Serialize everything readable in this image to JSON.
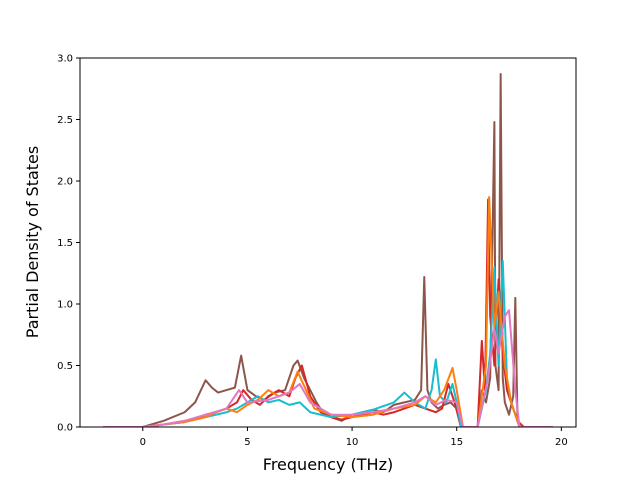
{
  "chart_data": {
    "type": "line",
    "title": "",
    "xlabel": "Frequency (THz)",
    "ylabel": "Partial Density of States",
    "xlim": [
      -3.0,
      20.7
    ],
    "ylim": [
      0.0,
      3.0
    ],
    "xticks": [
      0,
      5,
      10,
      15,
      20
    ],
    "yticks": [
      0.0,
      0.5,
      1.0,
      1.5,
      2.0,
      2.5,
      3.0
    ],
    "xtick_labels": [
      "0",
      "5",
      "10",
      "15",
      "20"
    ],
    "ytick_labels": [
      "0.0",
      "0.5",
      "1.0",
      "1.5",
      "2.0",
      "2.5",
      "3.0"
    ],
    "grid": false,
    "legend": "none",
    "series": [
      {
        "color": "#8c564b",
        "x": [
          -1.9,
          0.0,
          1.0,
          2.0,
          2.5,
          3.0,
          3.3,
          3.6,
          4.0,
          4.4,
          4.7,
          5.0,
          5.4,
          5.8,
          6.3,
          6.8,
          7.2,
          7.4,
          7.7,
          8.0,
          8.3,
          8.6,
          9.0,
          9.5,
          10.0,
          10.5,
          11.0,
          11.5,
          12.0,
          12.5,
          13.0,
          13.3,
          13.45,
          13.6,
          13.8,
          14.1,
          14.4,
          14.7,
          15.0,
          15.2,
          15.5,
          16.0,
          16.2,
          16.4,
          16.6,
          16.8,
          16.85,
          17.0,
          17.1,
          17.2,
          17.3,
          17.5,
          17.7,
          17.8,
          17.9,
          18.0,
          19.0,
          19.6
        ],
        "y": [
          0.0,
          0.0,
          0.05,
          0.12,
          0.2,
          0.38,
          0.32,
          0.28,
          0.3,
          0.32,
          0.58,
          0.3,
          0.25,
          0.22,
          0.28,
          0.3,
          0.5,
          0.54,
          0.4,
          0.3,
          0.2,
          0.12,
          0.08,
          0.05,
          0.1,
          0.12,
          0.14,
          0.12,
          0.18,
          0.2,
          0.22,
          0.3,
          1.22,
          0.3,
          0.2,
          0.15,
          0.18,
          0.2,
          0.15,
          0.0,
          0.0,
          0.0,
          0.3,
          0.2,
          0.4,
          2.48,
          0.5,
          0.3,
          2.87,
          0.4,
          0.2,
          0.1,
          0.25,
          1.05,
          0.1,
          0.0,
          0.0,
          0.0
        ]
      },
      {
        "color": "#d62728",
        "x": [
          -1.9,
          0.0,
          1.0,
          2.0,
          2.6,
          3.0,
          3.5,
          4.0,
          4.5,
          4.8,
          5.2,
          5.6,
          6.0,
          6.5,
          7.0,
          7.3,
          7.6,
          8.0,
          8.5,
          9.0,
          9.5,
          10.0,
          10.5,
          11.0,
          11.5,
          12.0,
          12.5,
          13.0,
          13.5,
          14.0,
          14.3,
          14.6,
          14.9,
          15.2,
          15.5,
          16.0,
          16.2,
          16.35,
          16.5,
          16.6,
          16.8,
          17.0,
          17.2,
          17.4,
          17.6,
          17.9,
          18.2,
          19.6
        ],
        "y": [
          0.0,
          0.0,
          0.02,
          0.05,
          0.07,
          0.1,
          0.12,
          0.15,
          0.2,
          0.3,
          0.22,
          0.18,
          0.25,
          0.3,
          0.25,
          0.4,
          0.5,
          0.25,
          0.12,
          0.08,
          0.06,
          0.08,
          0.1,
          0.12,
          0.1,
          0.12,
          0.15,
          0.18,
          0.15,
          0.12,
          0.15,
          0.35,
          0.2,
          0.0,
          0.0,
          0.0,
          0.7,
          0.3,
          1.85,
          0.9,
          0.5,
          1.2,
          0.6,
          0.3,
          0.2,
          0.05,
          0.0,
          0.0
        ]
      },
      {
        "color": "#17becf",
        "x": [
          -1.9,
          0.0,
          1.0,
          2.0,
          3.0,
          4.0,
          4.5,
          5.0,
          5.5,
          6.0,
          6.5,
          7.0,
          7.5,
          8.0,
          9.0,
          10.0,
          11.0,
          12.0,
          12.5,
          13.0,
          13.5,
          13.8,
          14.0,
          14.2,
          14.5,
          14.8,
          15.0,
          15.2,
          16.0,
          16.4,
          16.6,
          16.8,
          17.0,
          17.2,
          17.4,
          17.6,
          18.0,
          19.6
        ],
        "y": [
          0.0,
          0.0,
          0.02,
          0.04,
          0.08,
          0.12,
          0.15,
          0.2,
          0.25,
          0.2,
          0.22,
          0.18,
          0.2,
          0.12,
          0.08,
          0.1,
          0.14,
          0.2,
          0.28,
          0.2,
          0.15,
          0.3,
          0.55,
          0.25,
          0.2,
          0.35,
          0.2,
          0.0,
          0.0,
          0.3,
          0.6,
          1.3,
          0.5,
          1.35,
          0.4,
          0.2,
          0.0,
          0.0
        ]
      },
      {
        "color": "#ff7f0e",
        "x": [
          -1.9,
          0.0,
          1.0,
          2.0,
          3.0,
          3.5,
          4.0,
          4.5,
          5.0,
          5.5,
          6.0,
          6.5,
          7.0,
          7.4,
          7.8,
          8.2,
          9.0,
          10.0,
          11.0,
          12.0,
          13.0,
          13.5,
          14.0,
          14.4,
          14.8,
          15.0,
          15.3,
          16.0,
          16.4,
          16.55,
          16.8,
          17.0,
          17.3,
          17.6,
          18.0,
          19.6
        ],
        "y": [
          0.0,
          0.0,
          0.02,
          0.04,
          0.08,
          0.12,
          0.15,
          0.12,
          0.18,
          0.22,
          0.3,
          0.25,
          0.28,
          0.45,
          0.3,
          0.15,
          0.1,
          0.08,
          0.1,
          0.15,
          0.18,
          0.25,
          0.2,
          0.3,
          0.48,
          0.3,
          0.0,
          0.0,
          0.5,
          1.87,
          0.8,
          1.1,
          0.5,
          0.2,
          0.0,
          0.0
        ]
      },
      {
        "color": "#e377c2",
        "x": [
          -1.9,
          0.0,
          1.0,
          2.0,
          3.0,
          4.0,
          4.6,
          5.0,
          6.0,
          7.0,
          7.5,
          8.0,
          9.0,
          10.0,
          11.0,
          12.0,
          13.0,
          13.5,
          14.0,
          14.5,
          15.0,
          15.3,
          16.0,
          16.5,
          16.8,
          17.0,
          17.3,
          17.5,
          17.8,
          18.0,
          19.6
        ],
        "y": [
          0.0,
          0.0,
          0.02,
          0.05,
          0.1,
          0.15,
          0.3,
          0.2,
          0.22,
          0.28,
          0.35,
          0.2,
          0.1,
          0.1,
          0.12,
          0.15,
          0.2,
          0.25,
          0.18,
          0.22,
          0.2,
          0.0,
          0.0,
          0.4,
          0.8,
          0.6,
          0.9,
          0.95,
          0.3,
          0.0,
          0.0
        ]
      }
    ]
  }
}
